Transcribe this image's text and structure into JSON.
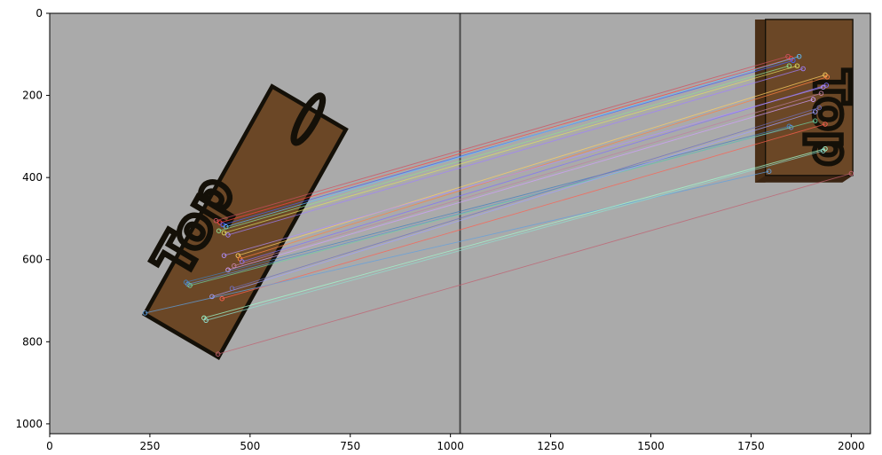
{
  "axes": {
    "x_ticks": [
      0,
      250,
      500,
      750,
      1000,
      1250,
      1500,
      1750,
      2000
    ],
    "y_ticks": [
      0,
      200,
      400,
      600,
      800,
      1000
    ],
    "x_range": [
      0,
      2048
    ],
    "y_range": [
      1024,
      0
    ],
    "divider_x": 1024
  },
  "left_image": {
    "block_corners": [
      [
        555,
        178
      ],
      [
        739,
        283
      ],
      [
        421,
        838
      ],
      [
        237,
        733
      ]
    ],
    "zero_glyph": {
      "cx": 645,
      "cy": 258,
      "rx": 18,
      "ry": 65,
      "rotate": 30
    },
    "top_text": {
      "text": "Top",
      "x": 335,
      "y": 650,
      "rotate": -60,
      "size": 130
    }
  },
  "right_image": {
    "front_face": [
      [
        1786,
        15
      ],
      [
        2004,
        15
      ],
      [
        2004,
        395
      ],
      [
        1786,
        395
      ]
    ],
    "side_face": [
      [
        1760,
        15
      ],
      [
        1786,
        15
      ],
      [
        1786,
        412
      ],
      [
        1760,
        412
      ]
    ],
    "bottom_face": [
      [
        1760,
        412
      ],
      [
        1786,
        395
      ],
      [
        2004,
        395
      ],
      [
        1978,
        412
      ]
    ],
    "top_text": {
      "text": "Top",
      "x": 1910,
      "y": 255,
      "rotate": 90,
      "size": 120
    }
  },
  "colors": {
    "background": "#aaaaaa",
    "wood": "#6b4726",
    "wood_dark": "#4a2f17",
    "edge": "#141008",
    "axis_frame": "#000000"
  },
  "matches": [
    {
      "from": [
        415,
        505
      ],
      "to": [
        1842,
        105
      ],
      "color": "#d05060"
    },
    {
      "from": [
        425,
        510
      ],
      "to": [
        1850,
        110
      ],
      "color": "#ff4040"
    },
    {
      "from": [
        432,
        515
      ],
      "to": [
        1855,
        115
      ],
      "color": "#4060ff"
    },
    {
      "from": [
        440,
        520
      ],
      "to": [
        1870,
        105
      ],
      "color": "#60c0ff"
    },
    {
      "from": [
        422,
        530
      ],
      "to": [
        1845,
        128
      ],
      "color": "#90e090"
    },
    {
      "from": [
        435,
        535
      ],
      "to": [
        1865,
        128
      ],
      "color": "#e0e060"
    },
    {
      "from": [
        445,
        540
      ],
      "to": [
        1880,
        135
      ],
      "color": "#a080ff"
    },
    {
      "from": [
        470,
        590
      ],
      "to": [
        1935,
        150
      ],
      "color": "#ffd060"
    },
    {
      "from": [
        475,
        598
      ],
      "to": [
        1940,
        155
      ],
      "color": "#ff8040"
    },
    {
      "from": [
        480,
        605
      ],
      "to": [
        1938,
        175
      ],
      "color": "#8070ff"
    },
    {
      "from": [
        435,
        590
      ],
      "to": [
        1930,
        180
      ],
      "color": "#b090ff"
    },
    {
      "from": [
        460,
        615
      ],
      "to": [
        1925,
        195
      ],
      "color": "#c080a0"
    },
    {
      "from": [
        445,
        625
      ],
      "to": [
        1905,
        210
      ],
      "color": "#d0a0ff"
    },
    {
      "from": [
        340,
        655
      ],
      "to": [
        1845,
        275
      ],
      "color": "#4080c0"
    },
    {
      "from": [
        345,
        660
      ],
      "to": [
        1850,
        278
      ],
      "color": "#6090d0"
    },
    {
      "from": [
        350,
        663
      ],
      "to": [
        1910,
        262
      ],
      "color": "#70d0a0"
    },
    {
      "from": [
        430,
        695
      ],
      "to": [
        1935,
        270
      ],
      "color": "#ff6050"
    },
    {
      "from": [
        238,
        730
      ],
      "to": [
        1795,
        385
      ],
      "color": "#60a0e0"
    },
    {
      "from": [
        385,
        742
      ],
      "to": [
        1935,
        330
      ],
      "color": "#a0ffd0"
    },
    {
      "from": [
        390,
        748
      ],
      "to": [
        1930,
        335
      ],
      "color": "#90e0d0"
    },
    {
      "from": [
        420,
        830
      ],
      "to": [
        2000,
        390
      ],
      "color": "#c06070"
    },
    {
      "from": [
        405,
        690
      ],
      "to": [
        1910,
        240
      ],
      "color": "#a0a0ff"
    },
    {
      "from": [
        455,
        670
      ],
      "to": [
        1920,
        230
      ],
      "color": "#7070c0"
    }
  ]
}
